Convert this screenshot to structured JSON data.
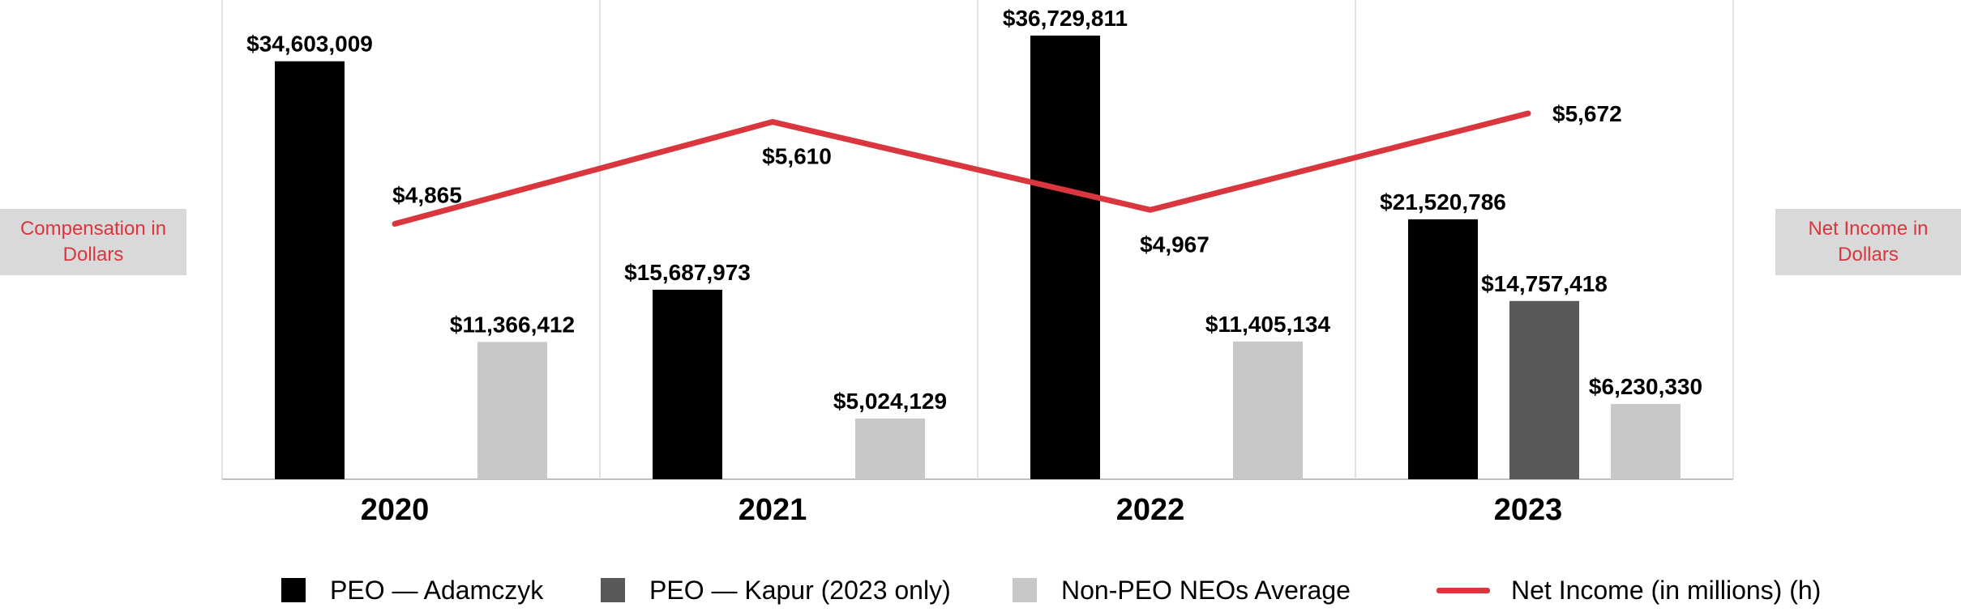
{
  "chart_data": {
    "type": "bar",
    "categories": [
      "2020",
      "2021",
      "2022",
      "2023"
    ],
    "series": [
      {
        "name": "PEO — Adamczyk",
        "color": "#000000",
        "values": [
          34603009,
          15687973,
          36729811,
          21520786
        ],
        "labels": [
          "$34,603,009",
          "$15,687,973",
          "$36,729,811",
          "$21,520,786"
        ]
      },
      {
        "name": "PEO — Kapur (2023 only)",
        "color": "#595959",
        "values": [
          null,
          null,
          null,
          14757418
        ],
        "labels": [
          "",
          "",
          "",
          "$14,757,418"
        ]
      },
      {
        "name": "Non-PEO NEOs Average",
        "color": "#c8c8c8",
        "values": [
          11366412,
          5024129,
          11405134,
          6230330
        ],
        "labels": [
          "$11,366,412",
          "$5,024,129",
          "$11,405,134",
          "$6,230,330"
        ]
      }
    ],
    "line_series": {
      "name": "Net Income (in millions) (h)",
      "color": "#d9363e",
      "values": [
        4865,
        5610,
        4967,
        5672
      ],
      "labels": [
        "$4,865",
        "$5,610",
        "$4,967",
        "$5,672"
      ],
      "label_position": [
        "above",
        "below",
        "below",
        "right"
      ]
    },
    "ylabel_left": "Compensation in Dollars",
    "ylabel_right": "Net Income in Dollars",
    "ylim": [
      0,
      38000000
    ],
    "ylim_right": [
      3000,
      6500
    ],
    "grid": false,
    "legend_position": "bottom"
  }
}
